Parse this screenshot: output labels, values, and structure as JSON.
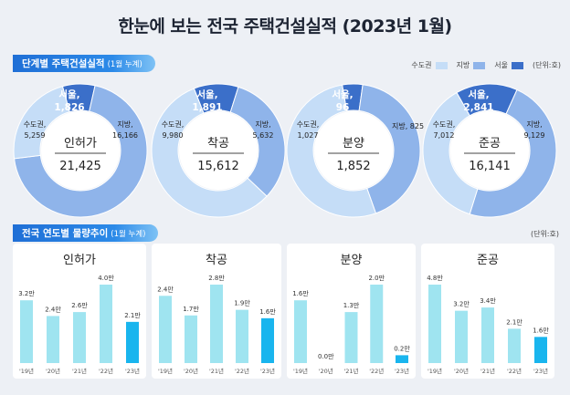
{
  "page": {
    "title": "한눈에 보는 전국 주택건설실적  (2023년 1월)",
    "section1": {
      "label": "단계별 주택건설실적",
      "sub": "(1월 누계)"
    },
    "section2": {
      "label": "전국 연도별 물량추이",
      "sub": "(1월 누계)"
    },
    "unit1": "(단위:호)",
    "unit2": "(단위:호)"
  },
  "legend": [
    {
      "name": "수도권",
      "color": "#c5ddf7"
    },
    {
      "name": "지방",
      "color": "#8fb4ea"
    },
    {
      "name": "서울",
      "color": "#3b6fc9"
    }
  ],
  "colors": {
    "capital": "#c5ddf7",
    "local": "#8fb4ea",
    "seoul": "#3b6fc9",
    "bar": "#9fe4f0",
    "bar_current": "#19b5ee"
  },
  "chart_data": [
    {
      "type": "pie",
      "name": "인허가",
      "total": "21,425",
      "slices": [
        {
          "name": "서울",
          "value": 1826,
          "label": "서울,\n1,826"
        },
        {
          "name": "수도권",
          "value": 5259,
          "label": "수도권,\n5,259"
        },
        {
          "name": "지방",
          "value": 16166,
          "label": "지방,\n16,166"
        }
      ]
    },
    {
      "type": "pie",
      "name": "착공",
      "total": "15,612",
      "slices": [
        {
          "name": "서울",
          "value": 1891,
          "label": "서울,\n1,891"
        },
        {
          "name": "수도권",
          "value": 9980,
          "label": "수도권,\n9,980"
        },
        {
          "name": "지방",
          "value": 5632,
          "label": "지방,\n5,632"
        }
      ]
    },
    {
      "type": "pie",
      "name": "분양",
      "total": "1,852",
      "slices": [
        {
          "name": "서울",
          "value": 96,
          "label": "서울,\n96"
        },
        {
          "name": "수도권",
          "value": 1027,
          "label": "수도권,\n1,027"
        },
        {
          "name": "지방",
          "value": 825,
          "label": "지방, 825"
        }
      ]
    },
    {
      "type": "pie",
      "name": "준공",
      "total": "16,141",
      "slices": [
        {
          "name": "서울",
          "value": 2841,
          "label": "서울,\n2,841"
        },
        {
          "name": "수도권",
          "value": 7012,
          "label": "수도권,\n7,012"
        },
        {
          "name": "지방",
          "value": 9129,
          "label": "지방,\n9,129"
        }
      ]
    },
    {
      "type": "bar",
      "name": "인허가",
      "categories": [
        "'19년",
        "'20년",
        "'21년",
        "'22년",
        "'23년"
      ],
      "values": [
        3.2,
        2.4,
        2.6,
        4.0,
        2.1
      ],
      "data_labels": [
        "3.2만",
        "2.4만",
        "2.6만",
        "4.0만",
        "2.1만"
      ],
      "ylim": [
        0,
        4.0
      ]
    },
    {
      "type": "bar",
      "name": "착공",
      "categories": [
        "'19년",
        "'20년",
        "'21년",
        "'22년",
        "'23년"
      ],
      "values": [
        2.4,
        1.7,
        2.8,
        1.9,
        1.6
      ],
      "data_labels": [
        "2.4만",
        "1.7만",
        "2.8만",
        "1.9만",
        "1.6만"
      ],
      "ylim": [
        0,
        2.8
      ]
    },
    {
      "type": "bar",
      "name": "분양",
      "categories": [
        "'19년",
        "'20년",
        "'21년",
        "'22년",
        "'23년"
      ],
      "values": [
        1.6,
        0.0,
        1.3,
        2.0,
        0.2
      ],
      "data_labels": [
        "1.6만",
        "0.0만",
        "1.3만",
        "2.0만",
        "0.2만"
      ],
      "ylim": [
        0,
        2.0
      ]
    },
    {
      "type": "bar",
      "name": "준공",
      "categories": [
        "'19년",
        "'20년",
        "'21년",
        "'22년",
        "'23년"
      ],
      "values": [
        4.8,
        3.2,
        3.4,
        2.1,
        1.6
      ],
      "data_labels": [
        "4.8만",
        "3.2만",
        "3.4만",
        "2.1만",
        "1.6만"
      ],
      "ylim": [
        0,
        4.8
      ]
    }
  ]
}
